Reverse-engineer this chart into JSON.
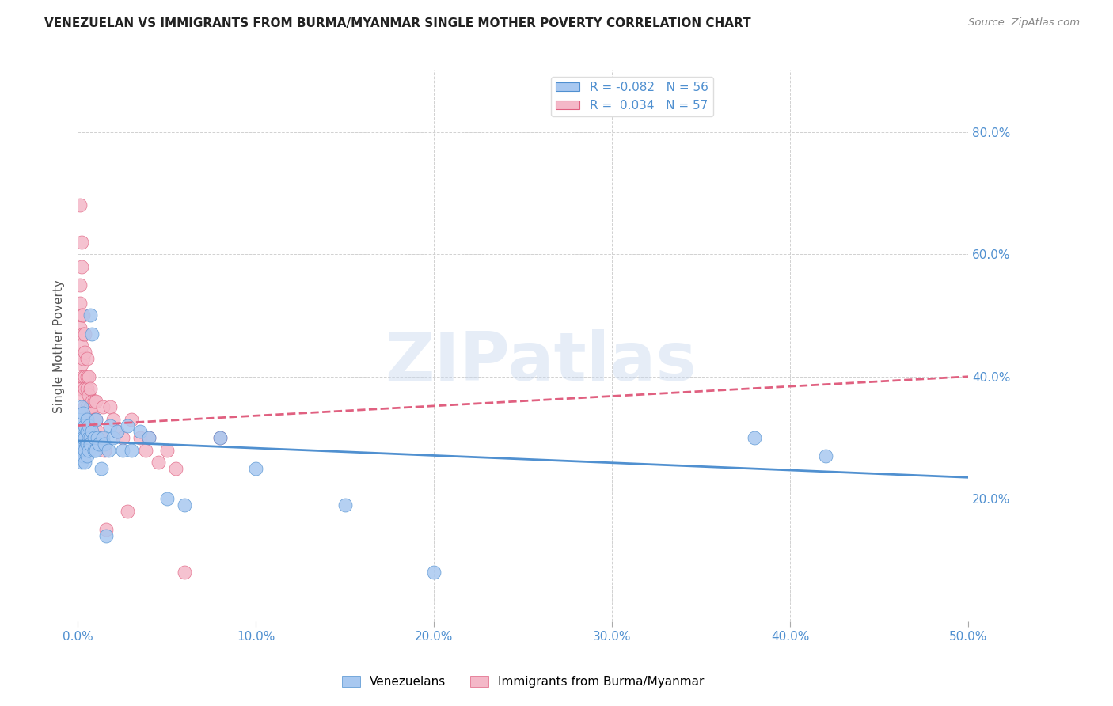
{
  "title": "VENEZUELAN VS IMMIGRANTS FROM BURMA/MYANMAR SINGLE MOTHER POVERTY CORRELATION CHART",
  "source": "Source: ZipAtlas.com",
  "ylabel": "Single Mother Poverty",
  "right_yticks": [
    "20.0%",
    "40.0%",
    "60.0%",
    "80.0%"
  ],
  "right_ytick_vals": [
    0.2,
    0.4,
    0.6,
    0.8
  ],
  "legend_blue_label": "R = -0.082   N = 56",
  "legend_pink_label": "R =  0.034   N = 57",
  "blue_color": "#A8C8F0",
  "pink_color": "#F4B8C8",
  "blue_line_color": "#5090D0",
  "pink_line_color": "#E06080",
  "watermark": "ZIPatlas",
  "venezuelans_x": [
    0.001,
    0.001,
    0.001,
    0.001,
    0.002,
    0.002,
    0.002,
    0.002,
    0.002,
    0.003,
    0.003,
    0.003,
    0.003,
    0.004,
    0.004,
    0.004,
    0.004,
    0.005,
    0.005,
    0.005,
    0.005,
    0.006,
    0.006,
    0.006,
    0.007,
    0.007,
    0.007,
    0.008,
    0.008,
    0.009,
    0.009,
    0.01,
    0.01,
    0.011,
    0.012,
    0.013,
    0.014,
    0.015,
    0.016,
    0.017,
    0.018,
    0.02,
    0.022,
    0.025,
    0.028,
    0.03,
    0.035,
    0.04,
    0.05,
    0.06,
    0.08,
    0.1,
    0.15,
    0.2,
    0.38,
    0.42
  ],
  "venezuelans_y": [
    0.3,
    0.28,
    0.33,
    0.27,
    0.35,
    0.3,
    0.26,
    0.31,
    0.29,
    0.34,
    0.28,
    0.3,
    0.27,
    0.32,
    0.3,
    0.28,
    0.26,
    0.31,
    0.33,
    0.29,
    0.27,
    0.3,
    0.32,
    0.28,
    0.5,
    0.3,
    0.29,
    0.47,
    0.31,
    0.3,
    0.28,
    0.33,
    0.28,
    0.3,
    0.29,
    0.25,
    0.3,
    0.29,
    0.14,
    0.28,
    0.32,
    0.3,
    0.31,
    0.28,
    0.32,
    0.28,
    0.31,
    0.3,
    0.2,
    0.19,
    0.3,
    0.25,
    0.19,
    0.08,
    0.3,
    0.27
  ],
  "burma_x": [
    0.001,
    0.001,
    0.001,
    0.001,
    0.001,
    0.002,
    0.002,
    0.002,
    0.002,
    0.002,
    0.002,
    0.003,
    0.003,
    0.003,
    0.003,
    0.003,
    0.004,
    0.004,
    0.004,
    0.004,
    0.004,
    0.005,
    0.005,
    0.005,
    0.005,
    0.006,
    0.006,
    0.006,
    0.007,
    0.007,
    0.007,
    0.008,
    0.008,
    0.009,
    0.009,
    0.01,
    0.01,
    0.011,
    0.012,
    0.013,
    0.014,
    0.015,
    0.016,
    0.018,
    0.02,
    0.022,
    0.025,
    0.028,
    0.03,
    0.035,
    0.038,
    0.04,
    0.045,
    0.05,
    0.055,
    0.06,
    0.08
  ],
  "burma_y": [
    0.68,
    0.55,
    0.52,
    0.48,
    0.38,
    0.62,
    0.58,
    0.5,
    0.45,
    0.42,
    0.38,
    0.5,
    0.47,
    0.43,
    0.4,
    0.37,
    0.47,
    0.44,
    0.4,
    0.38,
    0.35,
    0.43,
    0.4,
    0.38,
    0.35,
    0.4,
    0.37,
    0.34,
    0.38,
    0.35,
    0.32,
    0.36,
    0.34,
    0.36,
    0.33,
    0.36,
    0.33,
    0.31,
    0.3,
    0.3,
    0.35,
    0.28,
    0.15,
    0.35,
    0.33,
    0.31,
    0.3,
    0.18,
    0.33,
    0.3,
    0.28,
    0.3,
    0.26,
    0.28,
    0.25,
    0.08,
    0.3
  ],
  "xlim": [
    0.0,
    0.5
  ],
  "ylim": [
    0.0,
    0.9
  ],
  "blue_R": -0.082,
  "blue_N": 56,
  "blue_intercept": 0.295,
  "blue_slope": -0.12,
  "pink_R": 0.034,
  "pink_N": 57,
  "pink_intercept": 0.32,
  "pink_slope": 0.16
}
